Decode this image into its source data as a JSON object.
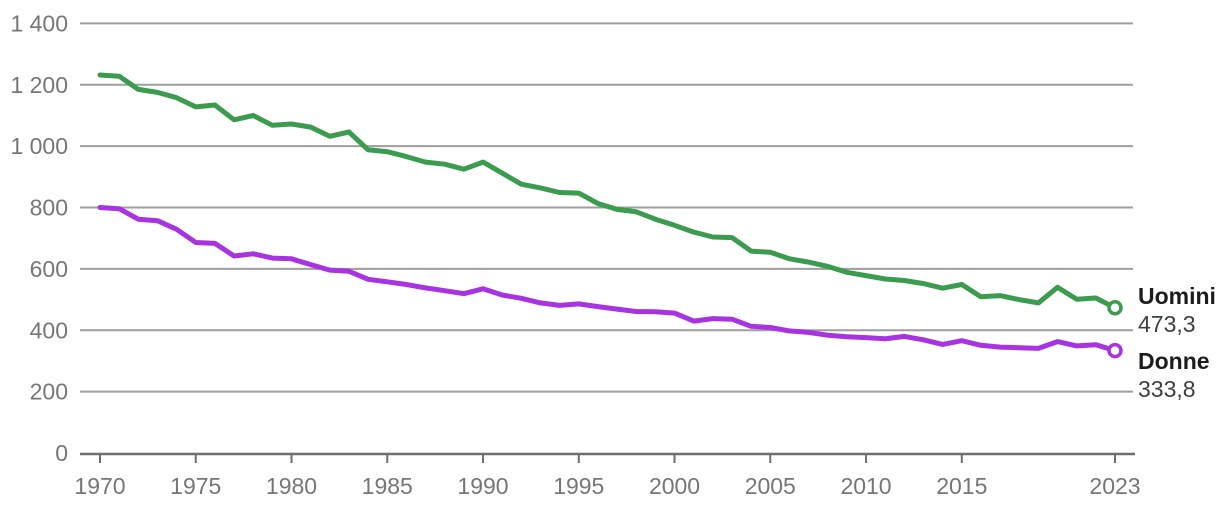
{
  "chart_data": {
    "type": "line",
    "title": "",
    "xlabel": "",
    "ylabel": "",
    "x": [
      1970,
      1971,
      1972,
      1973,
      1974,
      1975,
      1976,
      1977,
      1978,
      1979,
      1980,
      1981,
      1982,
      1983,
      1984,
      1985,
      1986,
      1987,
      1988,
      1989,
      1990,
      1991,
      1992,
      1993,
      1994,
      1995,
      1996,
      1997,
      1998,
      1999,
      2000,
      2001,
      2002,
      2003,
      2004,
      2005,
      2006,
      2007,
      2008,
      2009,
      2010,
      2011,
      2012,
      2013,
      2014,
      2015,
      2016,
      2017,
      2018,
      2019,
      2020,
      2021,
      2022,
      2023
    ],
    "series": [
      {
        "name": "Uomini",
        "color": "#3b9b4f",
        "end_label": "473,3",
        "end_value": 473.3,
        "values": [
          1232,
          1228,
          1185,
          1175,
          1158,
          1128,
          1134,
          1086,
          1100,
          1068,
          1072,
          1062,
          1032,
          1046,
          988,
          982,
          966,
          948,
          941,
          925,
          948,
          912,
          876,
          864,
          849,
          847,
          813,
          794,
          786,
          762,
          742,
          720,
          704,
          702,
          658,
          654,
          633,
          622,
          608,
          589,
          578,
          567,
          562,
          552,
          537,
          549,
          509,
          513,
          500,
          489,
          540,
          501,
          505,
          473.3
        ]
      },
      {
        "name": "Donne",
        "color": "#a833e1",
        "end_label": "333,8",
        "end_value": 333.8,
        "values": [
          800,
          796,
          762,
          757,
          729,
          686,
          683,
          642,
          649,
          635,
          633,
          614,
          596,
          592,
          566,
          558,
          549,
          538,
          529,
          519,
          535,
          515,
          504,
          489,
          481,
          486,
          477,
          469,
          461,
          460,
          456,
          430,
          438,
          436,
          413,
          409,
          398,
          393,
          384,
          379,
          376,
          372,
          380,
          369,
          354,
          366,
          351,
          345,
          343,
          341,
          363,
          349,
          353,
          333.8
        ]
      }
    ],
    "x_axis": {
      "ticks": [
        1970,
        1975,
        1980,
        1985,
        1990,
        1995,
        2000,
        2005,
        2010,
        2015,
        2023
      ]
    },
    "y_axis": {
      "ticks": [
        0,
        200,
        400,
        600,
        800,
        1000,
        1200,
        1400
      ],
      "labels": [
        "0",
        "200",
        "400",
        "600",
        "800",
        "1 000",
        "1 200",
        "1 400"
      ]
    },
    "ylim": [
      0,
      1400
    ],
    "xlim": [
      1970,
      2023
    ],
    "grid": true,
    "legend_position": "end-of-line-labels"
  },
  "colors": {
    "background": "#ffffff",
    "gridline": "#9e9e9e",
    "axis": "#6e6e6e",
    "tick_text": "#767676",
    "series_name_text": "#1c1c1c",
    "series_value_text": "#3c4043",
    "marker_fill": "#ffffff"
  }
}
